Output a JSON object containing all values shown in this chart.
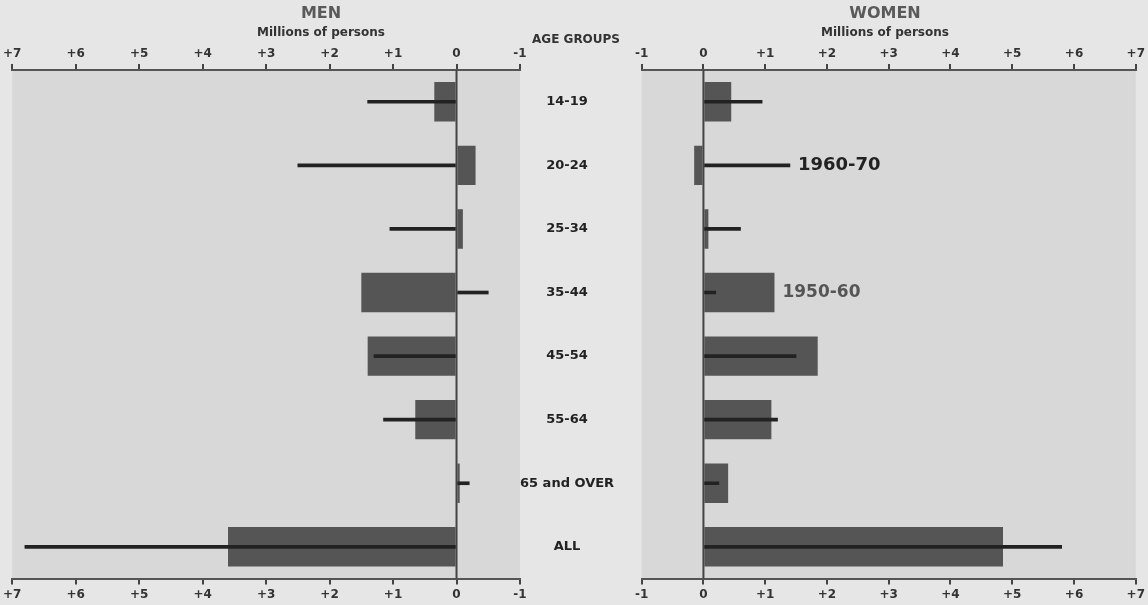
{
  "chart_data": [
    {
      "type": "bar",
      "orientation": "horizontal",
      "title": "MEN",
      "subtitle": "Millions of persons",
      "ylabel": "AGE GROUPS",
      "categories": [
        "14-19",
        "20-24",
        "25-34",
        "35-44",
        "45-54",
        "55-64",
        "65 and OVER",
        "ALL"
      ],
      "series": [
        {
          "color": "#555555",
          "values": [
            0.35,
            -0.3,
            -0.1,
            1.5,
            1.4,
            0.65,
            -0.05,
            3.6
          ]
        },
        {
          "color": "#222222",
          "values": [
            1.4,
            2.5,
            1.05,
            -0.5,
            1.3,
            1.15,
            -0.2,
            6.8
          ]
        }
      ],
      "xlim": [
        7,
        -1
      ],
      "xticks": [
        {
          "value": 7,
          "label": "+7"
        },
        {
          "value": 6,
          "label": "+6"
        },
        {
          "value": 5,
          "label": "+5"
        },
        {
          "value": 4,
          "label": "+4"
        },
        {
          "value": 3,
          "label": "+3"
        },
        {
          "value": 2,
          "label": "+2"
        },
        {
          "value": 1,
          "label": "+1"
        },
        {
          "value": 0,
          "label": "0"
        },
        {
          "value": -1,
          "label": "-1"
        }
      ],
      "x2lim": [
        7,
        -1
      ],
      "x2ticks": [
        {
          "value": 7,
          "label": "+7"
        },
        {
          "value": 6,
          "label": "+6"
        },
        {
          "value": 5,
          "label": "+5"
        },
        {
          "value": 4,
          "label": "+4"
        },
        {
          "value": 3,
          "label": "+3"
        },
        {
          "value": 2,
          "label": "+2"
        },
        {
          "value": 1,
          "label": "+1"
        },
        {
          "value": 0,
          "label": "0"
        },
        {
          "value": -1,
          "label": "-1"
        }
      ],
      "ref_lines": [
        {
          "axis": "x",
          "value": 0
        }
      ],
      "legend": false,
      "grid": false
    },
    {
      "type": "bar",
      "orientation": "horizontal",
      "title": "WOMEN",
      "subtitle": "Millions of persons",
      "categories": [
        "14-19",
        "20-24",
        "25-34",
        "35-44",
        "45-54",
        "55-64",
        "65 and OVER",
        "ALL"
      ],
      "series": [
        {
          "color": "#555555",
          "values": [
            0.45,
            -0.15,
            0.08,
            1.15,
            1.85,
            1.1,
            0.4,
            4.85
          ]
        },
        {
          "color": "#222222",
          "values": [
            0.95,
            1.4,
            0.6,
            0.2,
            1.5,
            1.2,
            0.25,
            5.8
          ]
        }
      ],
      "xlim": [
        -1,
        7
      ],
      "xticks": [
        {
          "value": -1,
          "label": "-1"
        },
        {
          "value": 0,
          "label": "0"
        },
        {
          "value": 1,
          "label": "+1"
        },
        {
          "value": 2,
          "label": "+2"
        },
        {
          "value": 3,
          "label": "+3"
        },
        {
          "value": 4,
          "label": "+4"
        },
        {
          "value": 5,
          "label": "+5"
        },
        {
          "value": 6,
          "label": "+6"
        },
        {
          "value": 7,
          "label": "+7"
        }
      ],
      "x2lim": [
        -1,
        7
      ],
      "x2ticks": [
        {
          "value": -1,
          "label": "-1"
        },
        {
          "value": 0,
          "label": "0"
        },
        {
          "value": 1,
          "label": "+1"
        },
        {
          "value": 2,
          "label": "+2"
        },
        {
          "value": 3,
          "label": "+3"
        },
        {
          "value": 4,
          "label": "+4"
        },
        {
          "value": 5,
          "label": "+5"
        },
        {
          "value": 6,
          "label": "+6"
        },
        {
          "value": 7,
          "label": "+7"
        }
      ],
      "annotations": [
        {
          "text": "1960-70",
          "x": 1.4,
          "y": "20-24"
        },
        {
          "text": "1950-60",
          "x": 1.15,
          "y": "35-44"
        }
      ],
      "ref_lines": [
        {
          "axis": "x",
          "value": 0
        }
      ],
      "tick_labels": "x",
      "legend": false,
      "grid": false
    }
  ]
}
